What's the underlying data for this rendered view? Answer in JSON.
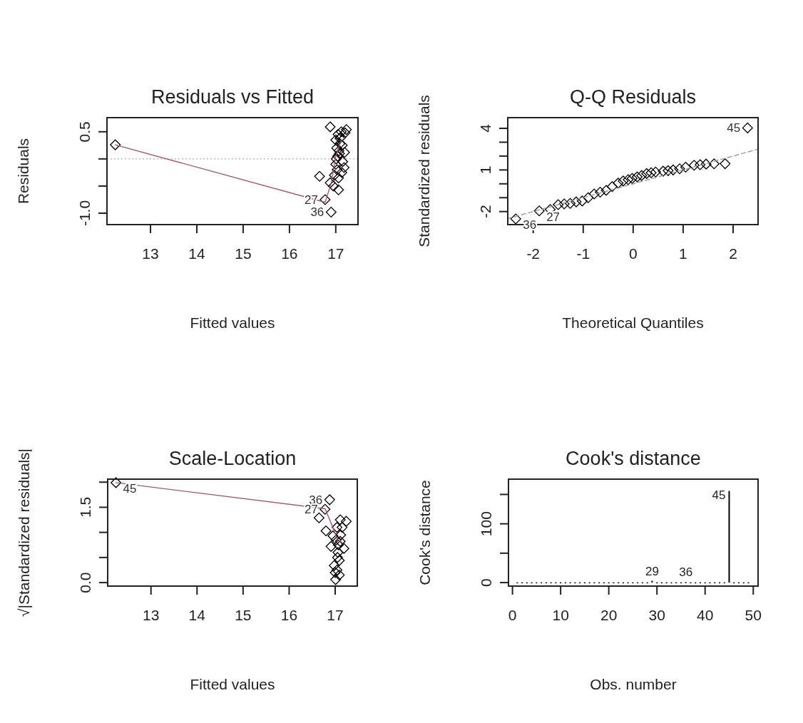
{
  "chart_data": [
    {
      "type": "scatter",
      "title": "Residuals vs Fitted",
      "xlabel": "Fitted values",
      "ylabel": "Residuals",
      "xlim": [
        12.06,
        17.48
      ],
      "xticks": [
        13,
        14,
        15,
        16,
        17
      ],
      "ylim": [
        -1.21,
        0.76
      ],
      "yticks": [
        0.5,
        {
          "value": 0,
          "label": null
        },
        {
          "value": -0.5,
          "label": null
        },
        {
          "value": -1,
          "label": "-1.0"
        }
      ],
      "series": [
        {
          "type": "scatter",
          "marker": "diamond",
          "color": "#000000",
          "x": [
            12.24,
            16.88,
            17.23,
            17.09,
            16.65,
            16.77,
            16.9,
            17.06,
            17.18,
            16.88,
            17.0,
            17.02,
            17.05,
            17.08,
            17.19,
            17.12,
            17.15,
            17.03,
            17.07,
            17.0,
            17.11,
            17.04,
            16.97,
            17.14,
            17.06,
            17.09,
            16.95,
            17.2,
            17.01,
            17.13
          ],
          "values": [
            0.26,
            0.59,
            0.54,
            0.28,
            -0.32,
            -0.75,
            -0.98,
            -0.57,
            -0.16,
            -0.44,
            0.35,
            0.2,
            0.45,
            0.1,
            0.12,
            0.5,
            -0.05,
            -0.2,
            0.15,
            -0.1,
            0.4,
            0.05,
            -0.3,
            0.25,
            -0.35,
            0.38,
            -0.5,
            0.48,
            0.0,
            -0.25
          ]
        },
        {
          "type": "line",
          "color": "#a05a6a",
          "x": [
            12.24,
            16.77,
            16.9,
            17.0,
            17.1,
            17.2
          ],
          "values": [
            0.26,
            -0.8,
            -0.45,
            0.05,
            0.3,
            0.4
          ]
        }
      ],
      "ref_lines": [
        {
          "axis": "y",
          "value": 0,
          "color": "#999999",
          "line_style": "dotted"
        }
      ],
      "annotations": [
        {
          "text": "27",
          "x": 16.77,
          "y": -0.75
        },
        {
          "text": "36",
          "x": 16.9,
          "y": -0.98
        }
      ]
    },
    {
      "type": "scatter",
      "title": "Q-Q Residuals",
      "xlabel": "Theoretical Quantiles",
      "ylabel": "Standardized residuals",
      "xlim": [
        -2.51,
        2.5
      ],
      "xticks": [
        -2,
        -1,
        0,
        1,
        2
      ],
      "ylim": [
        -2.94,
        4.77
      ],
      "yticks": [
        4,
        {
          "value": 3,
          "label": null
        },
        {
          "value": 2,
          "label": null
        },
        1,
        {
          "value": 0,
          "label": null
        },
        {
          "value": -1,
          "label": null
        },
        -2
      ],
      "series": [
        {
          "type": "scatter",
          "marker": "diamond",
          "color": "#000000",
          "x": [
            -2.35,
            -1.88,
            -1.66,
            -1.5,
            -1.38,
            -1.26,
            -1.14,
            -1.02,
            -0.9,
            -0.78,
            -0.66,
            -0.54,
            -0.42,
            -0.3,
            -0.2,
            -0.1,
            -0.02,
            0.08,
            0.17,
            0.27,
            0.36,
            0.45,
            0.6,
            0.7,
            0.8,
            0.93,
            1.05,
            1.22,
            1.34,
            1.46,
            1.62,
            1.84,
            2.29
          ],
          "values": [
            -2.53,
            -1.95,
            -1.85,
            -1.5,
            -1.45,
            -1.41,
            -1.3,
            -1.24,
            -1.0,
            -0.73,
            -0.6,
            -0.47,
            -0.2,
            0.05,
            0.2,
            0.3,
            0.39,
            0.5,
            0.6,
            0.74,
            0.8,
            0.85,
            0.91,
            0.95,
            1.0,
            1.08,
            1.2,
            1.34,
            1.38,
            1.42,
            1.44,
            1.45,
            4.03
          ]
        },
        {
          "type": "line",
          "color": "#999999",
          "line_style": "dashed",
          "x": [
            -2.51,
            2.5
          ],
          "values": [
            -2.51,
            2.5
          ]
        }
      ],
      "annotations": [
        {
          "text": "45",
          "x": 2.29,
          "y": 4.03
        },
        {
          "text": "36",
          "x": -2.35,
          "y": -2.53
        },
        {
          "text": "27",
          "x": -1.88,
          "y": -1.95
        }
      ]
    },
    {
      "type": "scatter",
      "title": "Scale-Location",
      "xlabel": "Fitted values",
      "ylabel": "√|Standardized residuals|",
      "xlim": [
        12.06,
        17.48
      ],
      "xticks": [
        13,
        14,
        15,
        16,
        17
      ],
      "ylim": [
        -0.07,
        2.06
      ],
      "yticks": [
        {
          "value": 0,
          "label": "0.0"
        },
        {
          "value": 0.5,
          "label": null
        },
        {
          "value": 1,
          "label": null
        },
        1.5,
        {
          "value": 2,
          "label": null
        }
      ],
      "series": [
        {
          "type": "scatter",
          "marker": "diamond",
          "color": "#000000",
          "x": [
            12.24,
            16.88,
            16.78,
            16.65,
            16.8,
            17.24,
            17.11,
            17.04,
            16.91,
            17.19,
            17.06,
            17.09,
            16.98,
            17.09,
            17.01,
            17.04,
            17.11,
            16.95,
            17.15,
            17.02,
            17.07,
            17.0,
            17.12,
            17.05
          ],
          "values": [
            1.99,
            1.65,
            1.46,
            1.29,
            1.03,
            1.22,
            1.25,
            1.1,
            0.72,
            0.68,
            0.6,
            0.44,
            0.34,
            0.15,
            0.06,
            0.25,
            0.82,
            0.93,
            1.1,
            0.85,
            0.75,
            0.2,
            0.95,
            0.5
          ]
        },
        {
          "type": "line",
          "color": "#a05a6a",
          "x": [
            12.24,
            16.78,
            16.95,
            17.05,
            17.15
          ],
          "values": [
            1.99,
            1.47,
            1.1,
            0.85,
            0.8
          ]
        }
      ],
      "annotations": [
        {
          "text": "45",
          "x": 12.24,
          "y": 1.99
        },
        {
          "text": "36",
          "x": 16.88,
          "y": 1.65
        },
        {
          "text": "27",
          "x": 16.78,
          "y": 1.46
        }
      ]
    },
    {
      "type": "bar",
      "title": "Cook's distance",
      "xlabel": "Obs. number",
      "ylabel": "Cook's distance",
      "xlim": [
        -0.83,
        51
      ],
      "xticks": [
        0,
        10,
        20,
        30,
        40,
        50
      ],
      "ylim": [
        -6,
        176
      ],
      "yticks": [
        0,
        {
          "value": 50,
          "label": null
        },
        100,
        {
          "value": 150,
          "label": null
        }
      ],
      "color": "#000000",
      "x": [
        1,
        2,
        3,
        4,
        5,
        6,
        7,
        8,
        9,
        10,
        11,
        12,
        13,
        14,
        15,
        16,
        17,
        18,
        19,
        20,
        21,
        22,
        23,
        24,
        25,
        26,
        27,
        28,
        29,
        30,
        31,
        32,
        33,
        34,
        35,
        36,
        37,
        38,
        39,
        40,
        41,
        42,
        43,
        44,
        45,
        46,
        47,
        48,
        49
      ],
      "values": [
        0.5,
        0.5,
        0.5,
        0.5,
        0.5,
        0.5,
        0.5,
        0.5,
        0.5,
        0.5,
        0.5,
        0.5,
        0.5,
        0.5,
        0.5,
        0.5,
        0.5,
        0.5,
        0.5,
        0.5,
        0.5,
        0.5,
        0.5,
        0.5,
        0.5,
        0.5,
        0.5,
        0.5,
        3,
        0.5,
        0.5,
        0.5,
        0.5,
        0.5,
        0.5,
        1,
        0.5,
        0.5,
        0.5,
        0.5,
        0.5,
        0.5,
        0.5,
        0.5,
        156,
        0.5,
        0.5,
        0.5,
        0.5
      ],
      "annotations": [
        {
          "text": "29",
          "x": 29,
          "y": 3
        },
        {
          "text": "36",
          "x": 36,
          "y": 1
        },
        {
          "text": "45",
          "x": 45,
          "y": 156
        }
      ]
    }
  ]
}
